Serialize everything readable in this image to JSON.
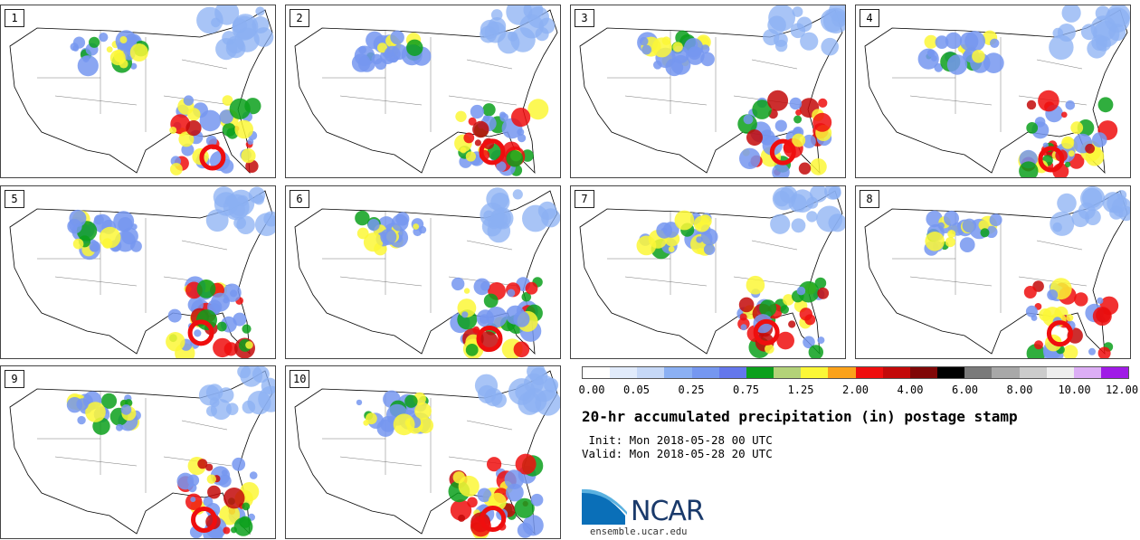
{
  "members": [
    {
      "num": "1"
    },
    {
      "num": "2"
    },
    {
      "num": "3"
    },
    {
      "num": "4"
    },
    {
      "num": "5"
    },
    {
      "num": "6"
    },
    {
      "num": "7"
    },
    {
      "num": "8"
    },
    {
      "num": "9"
    },
    {
      "num": "10"
    }
  ],
  "chart_data": {
    "type": "heatmap",
    "title": "20-hr accumulated precipitation (in) postage stamp",
    "units": "in",
    "legend_colors": [
      "#ffffff",
      "#e1ebfb",
      "#c6d8f7",
      "#8bb0f3",
      "#7597f0",
      "#6477ec",
      "#0ca01c",
      "#b3d278",
      "#fbf737",
      "#fba21a",
      "#ef0e0e",
      "#c30909",
      "#800707",
      "#000000",
      "#7a7a7a",
      "#a8a8a8",
      "#cccccc",
      "#eeeeee",
      "#dcaef5",
      "#a01be6"
    ],
    "tick_labels": [
      "0.00",
      "0.05",
      "0.25",
      "0.75",
      "1.25",
      "2.00",
      "4.00",
      "6.00",
      "8.00",
      "10.00",
      "12.00"
    ]
  },
  "info": {
    "init": " Init: Mon 2018-05-28 00 UTC",
    "valid": "Valid: Mon 2018-05-28 20 UTC"
  },
  "logo": {
    "text": "NCAR",
    "url": "ensemble.ucar.edu"
  }
}
